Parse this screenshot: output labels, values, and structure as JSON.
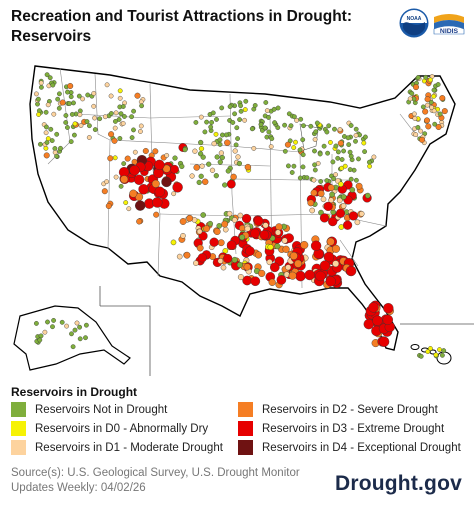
{
  "header": {
    "title_line1": "Recreation and Tourist Attractions in Drought:",
    "title_line2": "Reservoirs"
  },
  "logos": {
    "noaa": "NOAA",
    "nidis": "NIDIS",
    "noaa_icon": "noaa-emblem",
    "nidis_icon": "nidis-emblem"
  },
  "map": {
    "region": "Contiguous United States, Alaska, Hawaii",
    "drought_hotspots": [
      "Colorado-Kansas",
      "Southeast",
      "Florida"
    ]
  },
  "legend": {
    "title": "Reservoirs in Drought",
    "items": [
      {
        "label": "Reservoirs Not in Drought",
        "color": "#7fae3c"
      },
      {
        "label": "Reservoirs in D0 - Abnormally Dry",
        "color": "#f6f205"
      },
      {
        "label": "Reservoirs in D1 - Moderate Drought",
        "color": "#fdd39e"
      },
      {
        "label": "Reservoirs in D2 - Severe Drought",
        "color": "#f57e24"
      },
      {
        "label": "Reservoirs in D3 - Extreme Drought",
        "color": "#e60000"
      },
      {
        "label": "Reservoirs in D4 - Exceptional Drought",
        "color": "#6f1212"
      }
    ]
  },
  "footer": {
    "source": "Source(s): U.S. Geological Survey, U.S. Drought Monitor",
    "updates": "Updates Weekly: 04/02/26",
    "brand": "Drought.gov"
  }
}
